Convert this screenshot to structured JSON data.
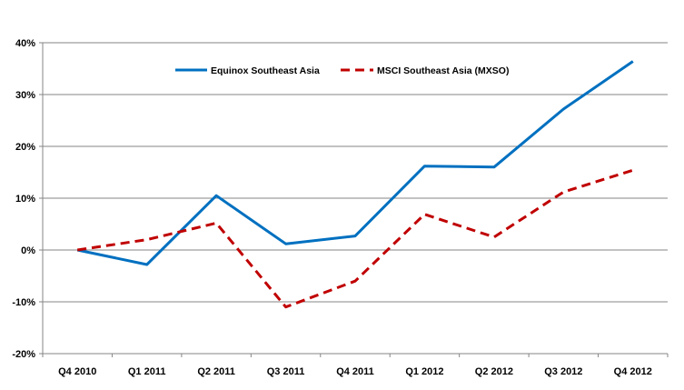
{
  "chart_data": {
    "type": "line",
    "title": "",
    "xlabel": "",
    "ylabel": "",
    "categories": [
      "Q4 2010",
      "Q1 2011",
      "Q2 2011",
      "Q3 2011",
      "Q4 2011",
      "Q1 2012",
      "Q2 2012",
      "Q3 2012",
      "Q4 2012"
    ],
    "y_ticks": [
      -20,
      -10,
      0,
      10,
      20,
      30,
      40
    ],
    "y_tick_labels": [
      "-20%",
      "-10%",
      "0%",
      "10%",
      "20%",
      "30%",
      "40%"
    ],
    "ylim": [
      -20,
      40
    ],
    "y_unit": "%",
    "grid": {
      "horizontal": true,
      "vertical": false
    },
    "legend_position": "top-center",
    "series": [
      {
        "name": "Equinox Southeast  Asia",
        "color": "#0070C0",
        "line_style": "solid",
        "values": [
          0,
          -2.8,
          10.5,
          1.2,
          2.7,
          16.2,
          16.0,
          27.2,
          36.4
        ]
      },
      {
        "name": "MSCI Southeast Asia (MXSO)",
        "color": "#C00000",
        "line_style": "dashed",
        "values": [
          0,
          2.0,
          5.2,
          -11.0,
          -6.0,
          6.9,
          2.5,
          11.2,
          15.4
        ]
      }
    ]
  }
}
